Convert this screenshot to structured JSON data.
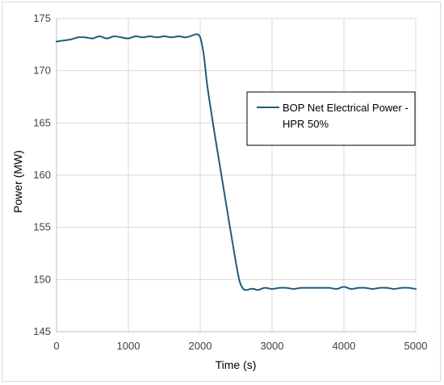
{
  "chart_data": {
    "type": "line",
    "title": "",
    "xlabel": "Time (s)",
    "ylabel": "Power (MW)",
    "xlim": [
      0,
      5000
    ],
    "ylim": [
      145,
      175
    ],
    "xticks": [
      0,
      1000,
      2000,
      3000,
      4000,
      5000
    ],
    "yticks": [
      145,
      150,
      155,
      160,
      165,
      170,
      175
    ],
    "grid": true,
    "legend_position": "right",
    "series": [
      {
        "name": "BOP Net Electrical Power - HPR 50%",
        "name_lines": [
          "BOP Net Electrical Power -",
          "HPR 50%"
        ],
        "color": "#1f5a7a",
        "x": [
          0,
          100,
          200,
          300,
          400,
          500,
          600,
          700,
          800,
          900,
          1000,
          1100,
          1200,
          1300,
          1400,
          1500,
          1600,
          1700,
          1800,
          1900,
          1950,
          2000,
          2050,
          2100,
          2200,
          2300,
          2400,
          2500,
          2550,
          2600,
          2650,
          2700,
          2750,
          2800,
          2900,
          3000,
          3100,
          3200,
          3300,
          3400,
          3500,
          3600,
          3700,
          3800,
          3900,
          4000,
          4100,
          4200,
          4300,
          4400,
          4500,
          4600,
          4700,
          4800,
          4900,
          5000
        ],
        "y": [
          172.8,
          172.9,
          173.0,
          173.2,
          173.2,
          173.1,
          173.3,
          173.1,
          173.3,
          173.2,
          173.1,
          173.3,
          173.2,
          173.3,
          173.2,
          173.3,
          173.2,
          173.3,
          173.2,
          173.4,
          173.5,
          173.2,
          171.5,
          168.5,
          164.0,
          159.8,
          155.6,
          151.5,
          149.8,
          149.1,
          149.0,
          149.1,
          149.1,
          149.0,
          149.2,
          149.1,
          149.2,
          149.2,
          149.1,
          149.2,
          149.2,
          149.2,
          149.2,
          149.2,
          149.1,
          149.3,
          149.1,
          149.2,
          149.2,
          149.1,
          149.2,
          149.2,
          149.1,
          149.2,
          149.2,
          149.1
        ]
      }
    ]
  }
}
